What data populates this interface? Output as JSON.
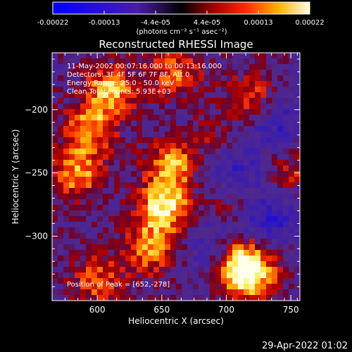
{
  "colorbar": {
    "tick_labels": [
      "-0.00022",
      "-0.00013",
      "-4.4e-05",
      "4.4e-05",
      "0.00013",
      "0.00022"
    ],
    "unit_label": "(photons cm⁻² s⁻¹ asec⁻²)",
    "range": [
      -0.00022,
      0.00022
    ]
  },
  "chart_data": {
    "type": "heatmap",
    "title": "Reconstructed RHESSI Image",
    "xlabel": "Heliocentric X (arcsec)",
    "ylabel": "Heliocentric Y (arcsec)",
    "xlim": [
      565,
      757
    ],
    "ylim": [
      -351,
      -155
    ],
    "x_ticks": [
      600,
      650,
      700,
      750
    ],
    "y_ticks": [
      -200,
      -250,
      -300
    ],
    "annotations": [
      "11-May-2002 00:07:16.000 to 00:13:16.000",
      "Detectors: 3F 4F 5F 6F 7F 8F, Att 0",
      "Energy Range: 25.0 - 50.0 keV",
      "Clean     Total counts: 5.93E+03"
    ],
    "peak_label": "Position of Peak = [652,-278]",
    "peak": [
      652,
      -278
    ],
    "bright_regions": [
      {
        "x": 610,
        "y": -185,
        "level": 0.8
      },
      {
        "x": 595,
        "y": -215,
        "level": 0.7
      },
      {
        "x": 585,
        "y": -250,
        "level": 0.75
      },
      {
        "x": 652,
        "y": -278,
        "level": 1.0
      },
      {
        "x": 658,
        "y": -245,
        "level": 0.8
      },
      {
        "x": 640,
        "y": -310,
        "level": 0.7
      },
      {
        "x": 710,
        "y": -320,
        "level": 0.8
      },
      {
        "x": 718,
        "y": -330,
        "level": 0.95
      },
      {
        "x": 660,
        "y": -170,
        "level": 0.6
      },
      {
        "x": 720,
        "y": -190,
        "level": 0.55
      },
      {
        "x": 700,
        "y": -270,
        "level": 0.5
      },
      {
        "x": 600,
        "y": -335,
        "level": 0.55
      },
      {
        "x": 750,
        "y": -250,
        "level": 0.45
      },
      {
        "x": 690,
        "y": -225,
        "level": 0.4
      }
    ],
    "dark_regions": [
      {
        "x": 700,
        "y": -250,
        "level": -0.6
      },
      {
        "x": 740,
        "y": -210,
        "level": -0.45
      },
      {
        "x": 690,
        "y": -310,
        "level": -0.4
      },
      {
        "x": 735,
        "y": -285,
        "level": -0.5
      }
    ]
  },
  "footer": {
    "timestamp": "29-Apr-2022 01:02"
  }
}
